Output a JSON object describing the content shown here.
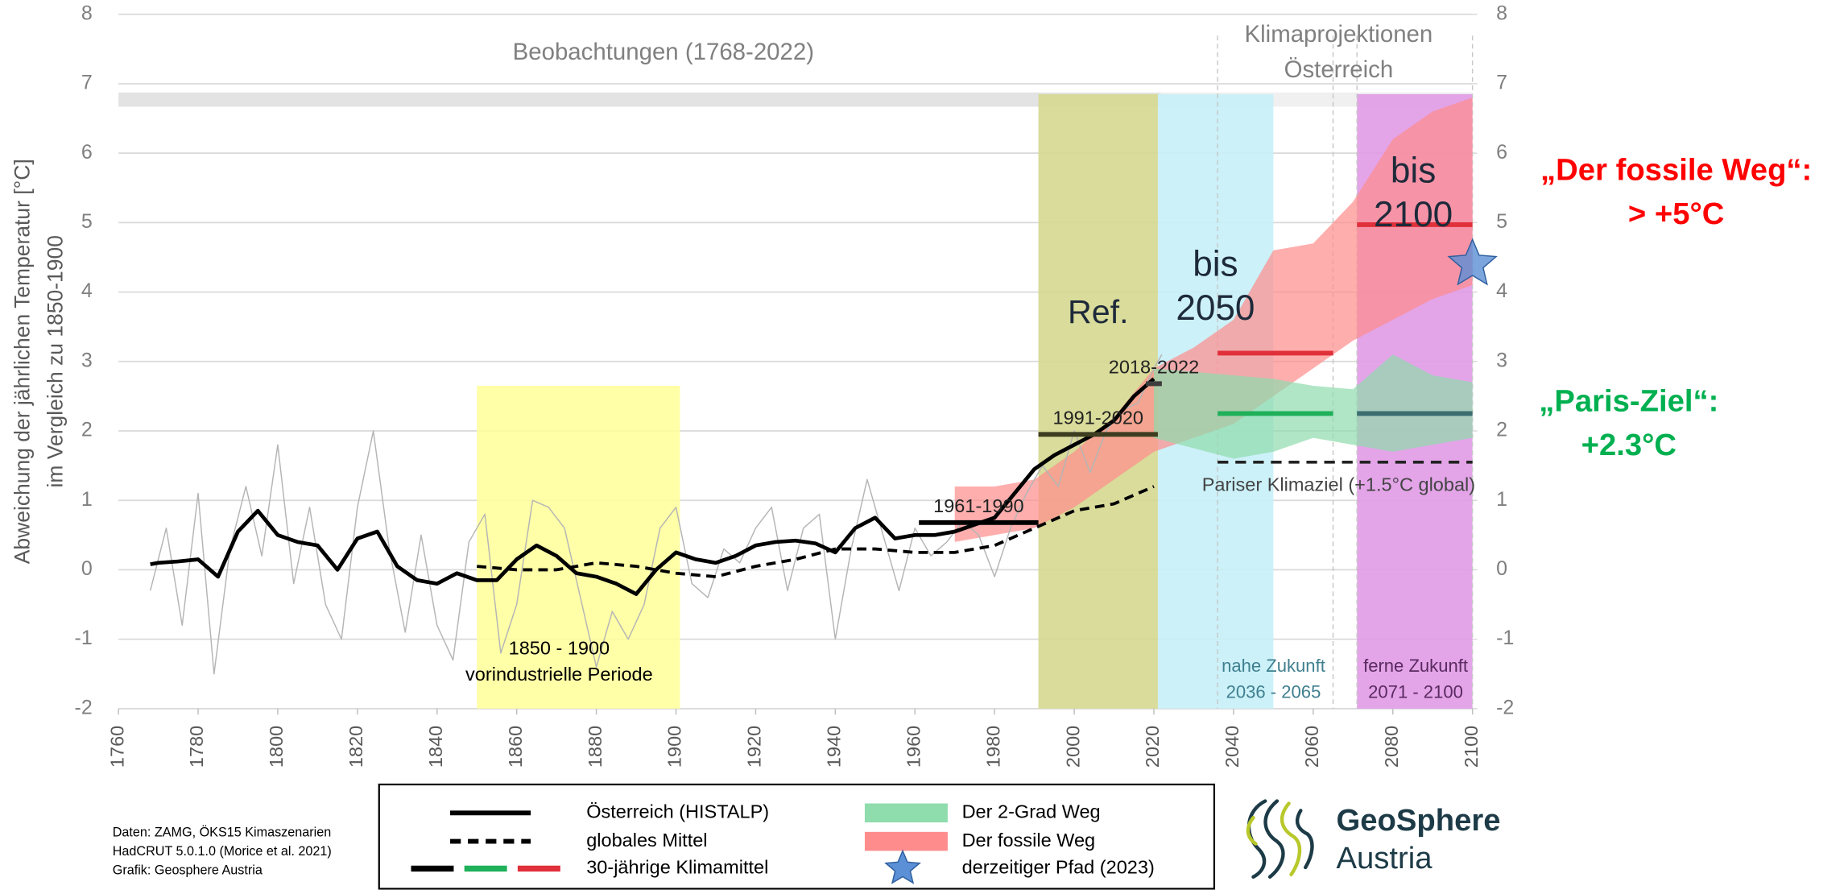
{
  "chart_data": {
    "type": "line",
    "ylabel": [
      "Abweichung der jährlichen Temperatur [°C]",
      "im Vergleich zu 1850-1900"
    ],
    "xlim": [
      1760,
      2100
    ],
    "xticks": [
      1760,
      1780,
      1800,
      1820,
      1840,
      1860,
      1880,
      1900,
      1920,
      1940,
      1960,
      1980,
      2000,
      2020,
      2040,
      2060,
      2080,
      2100
    ],
    "ylim": [
      -2,
      8
    ],
    "yticks": [
      -2,
      -1,
      0,
      1,
      2,
      3,
      4,
      5,
      6,
      7,
      8
    ],
    "y2lim": [
      -2,
      8
    ],
    "y2ticks": [
      -2,
      -1,
      0,
      1,
      2,
      3,
      4,
      5,
      6,
      7,
      8
    ],
    "grid": true,
    "observation_label": "Beobachtungen (1768-2022)",
    "projection_label": [
      "Klimaprojektionen",
      "Österreich"
    ],
    "periods": [
      {
        "x": [
          1850,
          1901
        ],
        "top": 2.65,
        "color": "#ffff99",
        "labels": [
          "1850 - 1900",
          "vorindustrielle Periode"
        ]
      },
      {
        "x": [
          1991,
          2021
        ],
        "top": 6.85,
        "color": "#d5d88f",
        "labels": [
          "Ref."
        ]
      },
      {
        "x": [
          2021,
          2050
        ],
        "top": 6.85,
        "color": "#c6f0f7",
        "labels": [
          "bis",
          "2050"
        ]
      },
      {
        "x": [
          2071,
          2100
        ],
        "top": 6.85,
        "color": "#e09ae6",
        "labels": [
          "bis",
          "2100"
        ]
      }
    ],
    "period_bounds": [
      2036,
      2065,
      2071,
      2100
    ],
    "future_labels": [
      [
        "nahe Zukunft",
        "2036 - 2065"
      ],
      [
        "ferne Zukunft",
        "2071 - 2100"
      ]
    ],
    "series": [
      {
        "color": "#b5b5b5",
        "x": [
          1768,
          1772,
          1776,
          1780,
          1784,
          1788,
          1792,
          1796,
          1800,
          1804,
          1808,
          1812,
          1816,
          1820,
          1824,
          1828,
          1832,
          1836,
          1840,
          1844,
          1848,
          1852,
          1856,
          1860,
          1864,
          1868,
          1872,
          1876,
          1880,
          1884,
          1888,
          1892,
          1896,
          1900,
          1904,
          1908,
          1912,
          1916,
          1920,
          1924,
          1928,
          1932,
          1936,
          1940,
          1944,
          1948,
          1952,
          1956,
          1960,
          1964,
          1968,
          1972,
          1976,
          1980,
          1984,
          1988,
          1992,
          1996,
          2000,
          2004,
          2008,
          2012,
          2016,
          2020,
          2022
        ],
        "values": [
          -0.3,
          0.6,
          -0.8,
          1.1,
          -1.5,
          0.3,
          1.2,
          0.2,
          1.8,
          -0.2,
          0.9,
          -0.5,
          -1.0,
          0.9,
          2.0,
          0.3,
          -0.9,
          0.5,
          -0.8,
          -1.3,
          0.4,
          0.8,
          -1.2,
          -0.5,
          1.0,
          0.9,
          0.6,
          -0.4,
          -1.4,
          -0.6,
          -1.0,
          -0.5,
          0.6,
          0.9,
          -0.2,
          -0.4,
          0.3,
          0.1,
          0.6,
          0.9,
          -0.3,
          0.6,
          0.8,
          -1.0,
          0.3,
          1.3,
          0.5,
          -0.3,
          0.6,
          0.2,
          0.4,
          0.7,
          0.5,
          -0.1,
          0.6,
          1.1,
          1.5,
          1.2,
          2.0,
          1.4,
          2.0,
          2.3,
          2.4,
          2.9,
          3.1
        ]
      },
      {
        "name": "Österreich (HISTALP)",
        "color": "#000000",
        "x": [
          1768,
          1770,
          1775,
          1780,
          1785,
          1790,
          1795,
          1800,
          1805,
          1810,
          1815,
          1820,
          1825,
          1830,
          1835,
          1840,
          1845,
          1850,
          1855,
          1860,
          1865,
          1870,
          1875,
          1880,
          1885,
          1890,
          1895,
          1900,
          1905,
          1910,
          1915,
          1920,
          1925,
          1930,
          1935,
          1940,
          1945,
          1950,
          1955,
          1960,
          1965,
          1970,
          1975,
          1980,
          1985,
          1990,
          1995,
          2000,
          2005,
          2010,
          2015,
          2020
        ],
        "values": [
          0.08,
          0.1,
          0.12,
          0.15,
          -0.1,
          0.55,
          0.85,
          0.5,
          0.4,
          0.35,
          0.0,
          0.45,
          0.55,
          0.05,
          -0.15,
          -0.2,
          -0.05,
          -0.15,
          -0.15,
          0.15,
          0.35,
          0.2,
          -0.05,
          -0.1,
          -0.2,
          -0.35,
          0.0,
          0.25,
          0.15,
          0.1,
          0.2,
          0.35,
          0.4,
          0.42,
          0.38,
          0.25,
          0.6,
          0.75,
          0.45,
          0.5,
          0.5,
          0.55,
          0.65,
          0.75,
          1.1,
          1.45,
          1.65,
          1.8,
          1.95,
          2.15,
          2.5,
          2.75
        ]
      },
      {
        "name": "globales Mittel",
        "color": "#000000",
        "dash": true,
        "x": [
          1850,
          1860,
          1870,
          1880,
          1890,
          1900,
          1910,
          1920,
          1930,
          1940,
          1950,
          1960,
          1970,
          1980,
          1990,
          2000,
          2010,
          2020
        ],
        "values": [
          0.05,
          0.0,
          0.0,
          0.1,
          0.05,
          -0.05,
          -0.1,
          0.05,
          0.15,
          0.3,
          0.3,
          0.25,
          0.25,
          0.35,
          0.6,
          0.85,
          0.95,
          1.2
        ]
      }
    ],
    "bands": [
      {
        "name": "Der 2-Grad Weg",
        "color": "#8fdcad",
        "x": [
          2020,
          2030,
          2040,
          2050,
          2060,
          2070,
          2080,
          2090,
          2100
        ],
        "low": [
          1.9,
          1.75,
          1.6,
          1.7,
          1.9,
          1.8,
          1.7,
          1.8,
          1.9
        ],
        "high": [
          2.9,
          2.85,
          2.8,
          2.75,
          2.65,
          2.6,
          3.1,
          2.8,
          2.7
        ]
      },
      {
        "name": "Der fossile Weg",
        "color": "#ff8c8c",
        "x": [
          1970,
          1980,
          1990,
          2000,
          2010,
          2020,
          2030,
          2040,
          2050,
          2060,
          2070,
          2080,
          2090,
          2100
        ],
        "low": [
          0.4,
          0.5,
          0.6,
          0.9,
          1.3,
          1.7,
          1.9,
          2.1,
          2.5,
          2.9,
          3.3,
          3.6,
          3.9,
          4.1
        ],
        "high": [
          1.2,
          1.2,
          1.3,
          1.7,
          2.2,
          2.9,
          3.2,
          3.6,
          4.6,
          4.7,
          5.3,
          6.2,
          6.6,
          6.8
        ]
      }
    ],
    "climate_means_label": "30-jährige Klimamittel",
    "climate_means": [
      {
        "x": [
          1961,
          1991
        ],
        "value": 0.68,
        "color": "#000000",
        "label": "1961-1990"
      },
      {
        "x": [
          1991,
          2021
        ],
        "value": 1.95,
        "color": "#3d3d20",
        "label": "1991-2020"
      },
      {
        "x": [
          2018,
          2022
        ],
        "value": 2.68,
        "color": "#3d3d3d",
        "label": "2018-2022"
      },
      {
        "x": [
          2036,
          2065
        ],
        "value": 3.12,
        "color": "#e0303a"
      },
      {
        "x": [
          2036,
          2065
        ],
        "value": 2.25,
        "color": "#1fb05a"
      },
      {
        "x": [
          2071,
          2100
        ],
        "value": 4.97,
        "color": "#e0303a"
      },
      {
        "x": [
          2071,
          2100
        ],
        "value": 2.25,
        "color": "#3c6e70"
      }
    ],
    "paris_target": {
      "x": [
        2036,
        2100
      ],
      "value": 1.55,
      "label": "Pariser Klimaziel (+1.5°C global)"
    },
    "current_path": {
      "name": "derzeitiger Pfad (2023)",
      "x": 2100,
      "value": 4.4,
      "color": "#5b8fd6"
    },
    "annotations": [
      {
        "lines": [
          "„Der fossile Weg“:",
          "> +5°C"
        ],
        "color": "#ff0000"
      },
      {
        "lines": [
          "„Paris-Ziel“:",
          "+2.3°C"
        ],
        "color": "#00b050"
      }
    ]
  },
  "credits": [
    "Daten: ZAMG, ÖKS15 Kimaszenarien",
    "HadCRUT 5.0.1.0 (Morice et al. 2021)",
    "Grafik: Geosphere Austria"
  ],
  "logo": [
    "GeoSphere",
    "Austria"
  ]
}
